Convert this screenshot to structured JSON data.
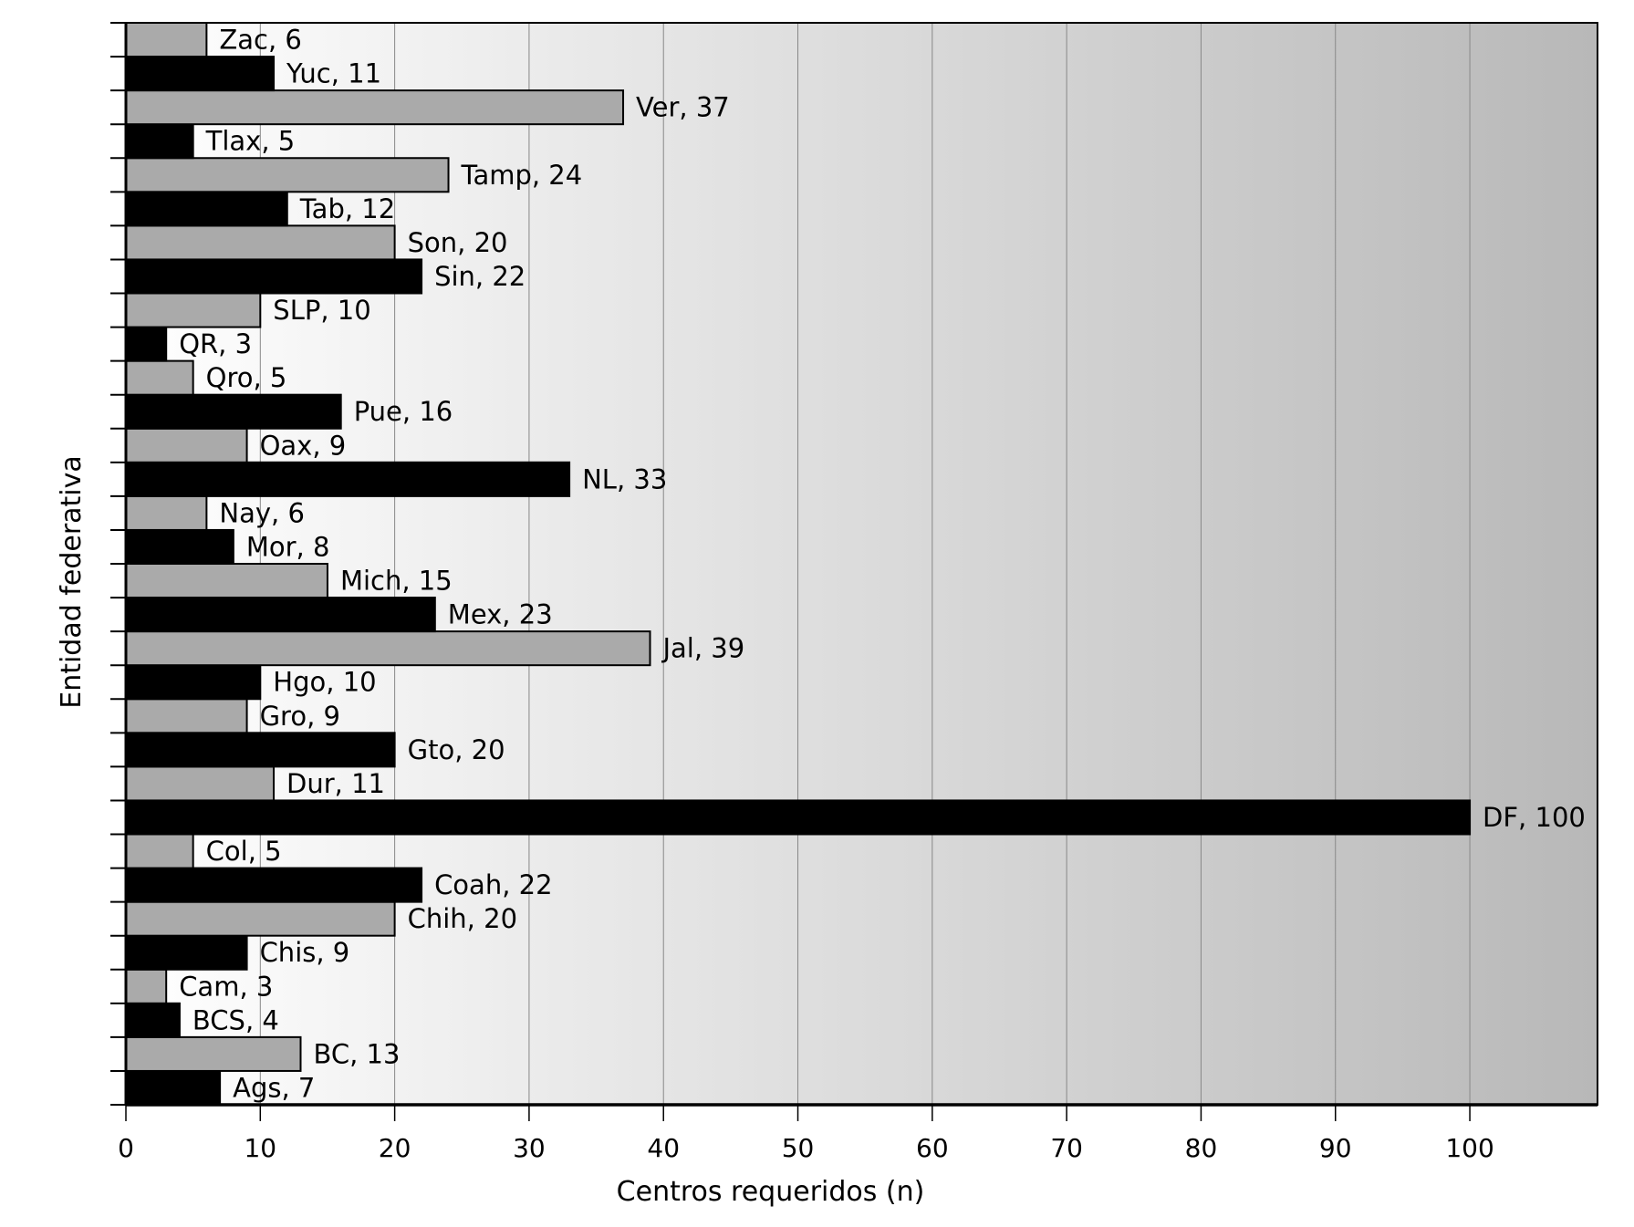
{
  "chart_data": {
    "type": "bar",
    "orientation": "horizontal",
    "title": "",
    "xlabel": "Centros requeridos (n)",
    "ylabel": "Entidad federativa",
    "xlim": [
      0,
      109.5
    ],
    "xticks": [
      0,
      10,
      20,
      30,
      40,
      50,
      60,
      70,
      80,
      90,
      100
    ],
    "grid": "vertical",
    "colors": {
      "gray": "#aaaaaa",
      "black": "#000000",
      "background_left": "#ffffff",
      "background_right": "#b8b8b8",
      "grid": "#888888"
    },
    "categories": [
      "Ags",
      "BC",
      "BCS",
      "Cam",
      "Chis",
      "Chih",
      "Coah",
      "Col",
      "DF",
      "Dur",
      "Gto",
      "Gro",
      "Hgo",
      "Jal",
      "Mex",
      "Mich",
      "Mor",
      "Nay",
      "NL",
      "Oax",
      "Pue",
      "Qro",
      "QR",
      "SLP",
      "Sin",
      "Son",
      "Tab",
      "Tamp",
      "Tlax",
      "Ver",
      "Yuc",
      "Zac"
    ],
    "values": [
      7,
      13,
      4,
      3,
      9,
      20,
      22,
      5,
      100,
      11,
      20,
      9,
      10,
      39,
      23,
      15,
      8,
      6,
      33,
      9,
      16,
      5,
      3,
      10,
      22,
      20,
      12,
      24,
      5,
      37,
      11,
      6
    ],
    "bar_colors": [
      "black",
      "gray",
      "black",
      "gray",
      "black",
      "gray",
      "black",
      "gray",
      "black",
      "gray",
      "black",
      "gray",
      "black",
      "gray",
      "black",
      "gray",
      "black",
      "gray",
      "black",
      "gray",
      "black",
      "gray",
      "black",
      "gray",
      "black",
      "gray",
      "black",
      "gray",
      "black",
      "gray",
      "black",
      "gray"
    ]
  }
}
